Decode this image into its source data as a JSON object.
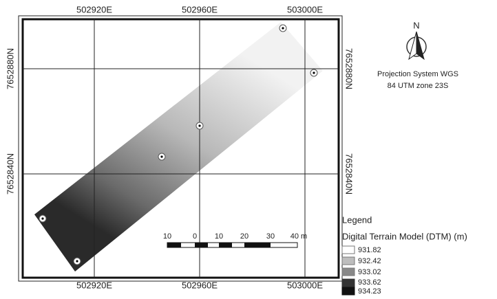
{
  "map": {
    "x_labels": [
      "502920E",
      "502960E",
      "503000E"
    ],
    "y_labels": [
      "7652880N",
      "7652840N"
    ],
    "north": "N",
    "projection": [
      "Projection System WGS",
      "84 UTM zone 23S"
    ],
    "scale_bar": [
      "10",
      "0",
      "10",
      "20",
      "30",
      "40 m"
    ]
  },
  "legend": {
    "title": "Legend",
    "subtitle": "Digital Terrain Model (DTM)  (m)",
    "items": [
      "931.82",
      "932.42",
      "933.02",
      "933.62",
      "934.23"
    ]
  }
}
